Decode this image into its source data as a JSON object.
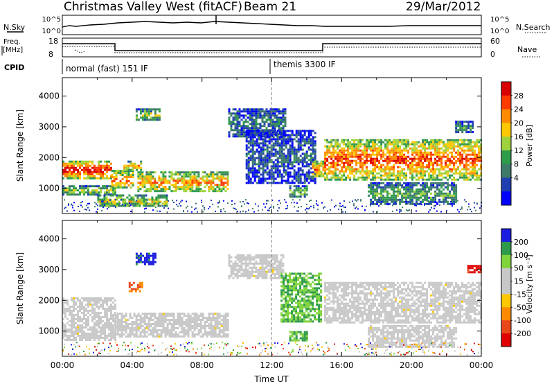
{
  "header": {
    "station": "Christmas Valley West (fitACF)",
    "beam": "Beam 21",
    "date": "29/Mar/2012"
  },
  "noise_panel": {
    "left_label": "N.Sky",
    "right_label": "N.Search",
    "left_ticks": [
      "10^5",
      "10^0"
    ],
    "right_ticks": [
      "10^5",
      "10^0"
    ]
  },
  "freq_panel": {
    "left_label_1": "Freq.",
    "left_label_2": "[MHz]",
    "right_label": "Nave",
    "left_ticks": [
      "18",
      "8"
    ],
    "right_ticks": [
      "60",
      "0"
    ]
  },
  "cpid_panel": {
    "label": "CPID",
    "segments": [
      {
        "start_hour": 0,
        "end_hour": 12,
        "text": "normal (fast) 151 IF"
      },
      {
        "start_hour": 12,
        "end_hour": 24,
        "text": "themis 3300 IF"
      }
    ]
  },
  "chart_data": [
    {
      "type": "heatmap",
      "name": "power",
      "ylabel": "Slant Range [km]",
      "ylim": [
        180,
        4600
      ],
      "yticks": [
        1000,
        2000,
        3000,
        4000
      ],
      "xlim": [
        0,
        24
      ],
      "colorbar": {
        "label": "Power [dB]",
        "ticks": [
          "28",
          "24",
          "20",
          "16",
          "12",
          "8",
          "4"
        ],
        "colors": [
          "#d80000",
          "#ff3a00",
          "#ff8a00",
          "#ffc800",
          "#9ed23c",
          "#2e9b4b",
          "#3d7a6a",
          "#1f3fb0",
          "#0000ff"
        ]
      },
      "echo_regions": [
        {
          "x": [
            0.0,
            2.8
          ],
          "y": [
            1350,
            1900
          ],
          "level": 0.85
        },
        {
          "x": [
            0.0,
            3.0
          ],
          "y": [
            800,
            1100
          ],
          "level": 0.45
        },
        {
          "x": [
            2.8,
            4.0
          ],
          "y": [
            1000,
            1600
          ],
          "level": 0.7
        },
        {
          "x": [
            3.5,
            4.5
          ],
          "y": [
            1600,
            1900
          ],
          "level": 0.6
        },
        {
          "x": [
            4.2,
            5.6
          ],
          "y": [
            3200,
            3600
          ],
          "level": 0.45
        },
        {
          "x": [
            4.3,
            9.5
          ],
          "y": [
            900,
            1550
          ],
          "level": 0.65
        },
        {
          "x": [
            2.0,
            6.0
          ],
          "y": [
            400,
            800
          ],
          "level": 0.5
        },
        {
          "x": [
            9.5,
            12.8
          ],
          "y": [
            2700,
            3600
          ],
          "level": 0.25
        },
        {
          "x": [
            10.5,
            14.5
          ],
          "y": [
            1200,
            2900
          ],
          "level": 0.2
        },
        {
          "x": [
            13.0,
            14.0
          ],
          "y": [
            700,
            1100
          ],
          "level": 0.4
        },
        {
          "x": [
            14.3,
            14.9
          ],
          "y": [
            1400,
            1900
          ],
          "level": 0.7
        },
        {
          "x": [
            15.0,
            24.0
          ],
          "y": [
            1300,
            2600
          ],
          "level": 0.75
        },
        {
          "x": [
            17.5,
            22.5
          ],
          "y": [
            500,
            1200
          ],
          "level": 0.35
        },
        {
          "x": [
            22.5,
            23.5
          ],
          "y": [
            2800,
            3200
          ],
          "level": 0.3
        }
      ]
    },
    {
      "type": "heatmap",
      "name": "velocity",
      "ylabel": "Slant Range [km]",
      "ylim": [
        180,
        4600
      ],
      "yticks": [
        1000,
        2000,
        3000,
        4000
      ],
      "xlim": [
        0,
        24
      ],
      "xlabel": "Time UT",
      "xticks": [
        "00:00",
        "04:00",
        "08:00",
        "12:00",
        "16:00",
        "20:00",
        "00:00"
      ],
      "colorbar": {
        "label": "Velocity [m s⁻¹]",
        "ticks": [
          "200",
          "100",
          "50",
          "15",
          "-15",
          "-50",
          "-100",
          "-200"
        ],
        "colors": [
          "#1c1ce0",
          "#2e9b4b",
          "#7fd33b",
          "#c8c8c8",
          "#c8c8c8",
          "#ffc800",
          "#ff8a00",
          "#e8481a",
          "#e00000"
        ]
      },
      "echo_regions": [
        {
          "x": [
            0.0,
            3.0
          ],
          "y": [
            700,
            2100
          ],
          "level": 0.0
        },
        {
          "x": [
            3.0,
            9.5
          ],
          "y": [
            800,
            1600
          ],
          "level": 0.0
        },
        {
          "x": [
            3.8,
            4.6
          ],
          "y": [
            2300,
            2600
          ],
          "level": -0.6
        },
        {
          "x": [
            4.2,
            5.3
          ],
          "y": [
            3150,
            3550
          ],
          "level": 1.0
        },
        {
          "x": [
            9.5,
            12.6
          ],
          "y": [
            2700,
            3500
          ],
          "level": 0.0
        },
        {
          "x": [
            12.5,
            14.8
          ],
          "y": [
            1300,
            2900
          ],
          "level": 0.6
        },
        {
          "x": [
            13.0,
            14.0
          ],
          "y": [
            700,
            1000
          ],
          "level": 0.6
        },
        {
          "x": [
            15.0,
            24.0
          ],
          "y": [
            1300,
            2600
          ],
          "level": 0.0
        },
        {
          "x": [
            17.5,
            22.5
          ],
          "y": [
            500,
            1200
          ],
          "level": 0.0
        },
        {
          "x": [
            23.2,
            24.0
          ],
          "y": [
            2900,
            3150
          ],
          "level": -1.0
        }
      ]
    }
  ]
}
